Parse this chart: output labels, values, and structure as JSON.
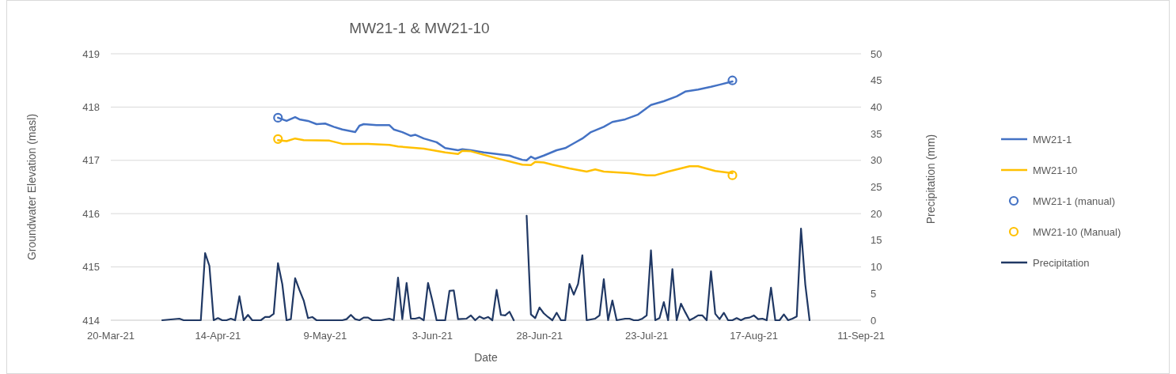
{
  "chart_data": {
    "type": "line",
    "title": "MW21-1 & MW21-10",
    "xlabel": "Date",
    "ylabel": "Groundwater Elevation (masl)",
    "y2label": "Precipitation (mm)",
    "xlim": [
      "2021-03-20",
      "2021-09-11"
    ],
    "xticks": [
      {
        "value": "2021-03-20",
        "label": "20-Mar-21"
      },
      {
        "value": "2021-04-14",
        "label": "14-Apr-21"
      },
      {
        "value": "2021-05-09",
        "label": "9-May-21"
      },
      {
        "value": "2021-06-03",
        "label": "3-Jun-21"
      },
      {
        "value": "2021-06-28",
        "label": "28-Jun-21"
      },
      {
        "value": "2021-07-23",
        "label": "23-Jul-21"
      },
      {
        "value": "2021-08-17",
        "label": "17-Aug-21"
      },
      {
        "value": "2021-09-11",
        "label": "11-Sep-21"
      }
    ],
    "ylim": [
      414,
      419
    ],
    "yticks": [
      414,
      415,
      416,
      417,
      418,
      419
    ],
    "y2lim": [
      0,
      50
    ],
    "y2ticks": [
      0,
      5,
      10,
      15,
      20,
      25,
      30,
      35,
      40,
      45,
      50
    ],
    "grid": "y",
    "legend": "right",
    "series": [
      {
        "name": "MW21-1",
        "color": "#4472c4",
        "marker": "none",
        "x": [
          "2021-04-28",
          "2021-04-30",
          "2021-05-02",
          "2021-05-03",
          "2021-05-05",
          "2021-05-07",
          "2021-05-09",
          "2021-05-11",
          "2021-05-13",
          "2021-05-16",
          "2021-05-17",
          "2021-05-18",
          "2021-05-21",
          "2021-05-24",
          "2021-05-25",
          "2021-05-27",
          "2021-05-29",
          "2021-05-30",
          "2021-06-01",
          "2021-06-04",
          "2021-06-06",
          "2021-06-09",
          "2021-06-10",
          "2021-06-12",
          "2021-06-15",
          "2021-06-18",
          "2021-06-21",
          "2021-06-22",
          "2021-06-24",
          "2021-06-25",
          "2021-06-26",
          "2021-06-27",
          "2021-06-29",
          "2021-07-02",
          "2021-07-04",
          "2021-07-06",
          "2021-07-08",
          "2021-07-10",
          "2021-07-13",
          "2021-07-15",
          "2021-07-18",
          "2021-07-21",
          "2021-07-24",
          "2021-07-27",
          "2021-07-30",
          "2021-08-01",
          "2021-08-04",
          "2021-08-07",
          "2021-08-09",
          "2021-08-12"
        ],
        "values": [
          417.8,
          417.74,
          417.81,
          417.77,
          417.74,
          417.68,
          417.69,
          417.63,
          417.58,
          417.53,
          417.65,
          417.68,
          417.66,
          417.66,
          417.58,
          417.53,
          417.46,
          417.48,
          417.41,
          417.34,
          417.23,
          417.19,
          417.21,
          417.19,
          417.15,
          417.12,
          417.09,
          417.06,
          417.01,
          417.0,
          417.07,
          417.03,
          417.09,
          417.19,
          417.23,
          417.32,
          417.41,
          417.53,
          417.63,
          417.72,
          417.77,
          417.86,
          418.04,
          418.11,
          418.2,
          418.29,
          418.33,
          418.38,
          418.42,
          418.48
        ]
      },
      {
        "name": "MW21-10",
        "color": "#ffc000",
        "marker": "none",
        "x": [
          "2021-04-28",
          "2021-04-30",
          "2021-05-02",
          "2021-05-04",
          "2021-05-10",
          "2021-05-13",
          "2021-05-19",
          "2021-05-24",
          "2021-05-26",
          "2021-06-01",
          "2021-06-06",
          "2021-06-09",
          "2021-06-10",
          "2021-06-12",
          "2021-06-18",
          "2021-06-24",
          "2021-06-26",
          "2021-06-27",
          "2021-06-29",
          "2021-07-01",
          "2021-07-05",
          "2021-07-09",
          "2021-07-11",
          "2021-07-13",
          "2021-07-19",
          "2021-07-23",
          "2021-07-25",
          "2021-07-28",
          "2021-08-02",
          "2021-08-04",
          "2021-08-08",
          "2021-08-12"
        ],
        "values": [
          417.38,
          417.36,
          417.41,
          417.38,
          417.37,
          417.31,
          417.31,
          417.29,
          417.26,
          417.22,
          417.15,
          417.12,
          417.18,
          417.17,
          417.04,
          416.92,
          416.91,
          416.97,
          416.96,
          416.92,
          416.85,
          416.79,
          416.83,
          416.79,
          416.76,
          416.72,
          416.72,
          416.79,
          416.89,
          416.89,
          416.8,
          416.76
        ]
      },
      {
        "name": "MW21-1 (manual)",
        "type": "scatter",
        "color": "#4472c4",
        "marker": "circle",
        "x": [
          "2021-04-28",
          "2021-08-12"
        ],
        "values": [
          417.8,
          418.5
        ]
      },
      {
        "name": "MW21-10 (Manual)",
        "type": "scatter",
        "color": "#ffc000",
        "marker": "circle",
        "x": [
          "2021-04-28",
          "2021-08-12"
        ],
        "values": [
          417.4,
          416.72
        ]
      },
      {
        "name": "Precipitation",
        "axis": "y2",
        "color": "#203864",
        "marker": "none",
        "x": [
          "2021-04-01",
          "2021-04-05",
          "2021-04-06",
          "2021-04-10",
          "2021-04-11",
          "2021-04-12",
          "2021-04-13",
          "2021-04-14",
          "2021-04-15",
          "2021-04-16",
          "2021-04-17",
          "2021-04-18",
          "2021-04-19",
          "2021-04-20",
          "2021-04-21",
          "2021-04-22",
          "2021-04-24",
          "2021-04-25",
          "2021-04-26",
          "2021-04-27",
          "2021-04-28",
          "2021-04-29",
          "2021-04-30",
          "2021-05-01",
          "2021-05-02",
          "2021-05-03",
          "2021-05-04",
          "2021-05-05",
          "2021-05-06",
          "2021-05-07",
          "2021-05-13",
          "2021-05-14",
          "2021-05-15",
          "2021-05-16",
          "2021-05-17",
          "2021-05-18",
          "2021-05-19",
          "2021-05-20",
          "2021-05-22",
          "2021-05-24",
          "2021-05-25",
          "2021-05-26",
          "2021-05-27",
          "2021-05-28",
          "2021-05-29",
          "2021-05-30",
          "2021-05-31",
          "2021-06-01",
          "2021-06-02",
          "2021-06-03",
          "2021-06-04",
          "2021-06-06",
          "2021-06-07",
          "2021-06-08",
          "2021-06-09",
          "2021-06-11",
          "2021-06-12",
          "2021-06-13",
          "2021-06-14",
          "2021-06-15",
          "2021-06-16",
          "2021-06-17",
          "2021-06-18",
          "2021-06-19",
          "2021-06-20",
          "2021-06-21",
          "2021-06-22",
          "2021-06-23",
          "2021-06-25",
          "2021-06-26",
          "2021-06-27",
          "2021-06-28",
          "2021-06-29",
          "2021-06-30",
          "2021-07-01",
          "2021-07-02",
          "2021-07-03",
          "2021-07-04",
          "2021-07-05",
          "2021-07-06",
          "2021-07-07",
          "2021-07-08",
          "2021-07-09",
          "2021-07-11",
          "2021-07-12",
          "2021-07-13",
          "2021-07-14",
          "2021-07-15",
          "2021-07-16",
          "2021-07-18",
          "2021-07-19",
          "2021-07-20",
          "2021-07-21",
          "2021-07-22",
          "2021-07-23",
          "2021-07-24",
          "2021-07-25",
          "2021-07-26",
          "2021-07-27",
          "2021-07-28",
          "2021-07-29",
          "2021-07-30",
          "2021-07-31",
          "2021-08-01",
          "2021-08-02",
          "2021-08-03",
          "2021-08-04",
          "2021-08-05",
          "2021-08-06",
          "2021-08-07",
          "2021-08-08",
          "2021-08-09",
          "2021-08-10",
          "2021-08-11",
          "2021-08-12",
          "2021-08-13",
          "2021-08-14",
          "2021-08-15",
          "2021-08-16",
          "2021-08-17",
          "2021-08-18",
          "2021-08-19",
          "2021-08-20",
          "2021-08-21",
          "2021-08-22",
          "2021-08-23",
          "2021-08-24",
          "2021-08-25",
          "2021-08-26",
          "2021-08-27",
          "2021-08-28",
          "2021-08-29",
          "2021-08-30"
        ],
        "values": [
          0,
          0.3,
          0,
          0,
          12.6,
          10.2,
          0,
          0.4,
          0,
          0,
          0.3,
          0,
          4.5,
          0,
          1.0,
          0,
          0,
          0.6,
          0.6,
          1.2,
          10.7,
          6.8,
          0,
          0.2,
          7.9,
          5.7,
          3.7,
          0.4,
          0.6,
          0,
          0,
          0.2,
          1.0,
          0.2,
          0,
          0.5,
          0.5,
          0,
          0,
          0.3,
          0,
          8.0,
          0.2,
          7.0,
          0.3,
          0.3,
          0.5,
          0,
          7.0,
          3.7,
          0,
          0,
          5.5,
          5.6,
          0.2,
          0.3,
          0.9,
          0,
          0.7,
          0.3,
          0.6,
          0,
          5.7,
          1.0,
          0.9,
          1.6,
          0,
          null,
          19.6,
          1.1,
          0.4,
          2.4,
          1.3,
          0.6,
          0,
          1.4,
          0,
          0,
          6.8,
          4.8,
          6.8,
          12.2,
          0,
          0.3,
          0.9,
          7.7,
          0,
          3.7,
          0,
          0.3,
          0.3,
          0,
          0,
          0.3,
          0.9,
          13.1,
          0,
          0.4,
          3.4,
          0,
          9.6,
          0,
          3.1,
          1.5,
          0,
          0.4,
          0.9,
          0.9,
          0,
          9.2,
          1.2,
          0.2,
          1.4,
          0,
          0,
          0.4,
          0,
          0.4,
          0.5,
          0.9,
          0.2,
          0.3,
          0,
          6.1,
          0,
          0,
          1.1,
          0,
          0.3,
          0.7,
          17.2,
          6.7,
          0
        ]
      }
    ]
  }
}
